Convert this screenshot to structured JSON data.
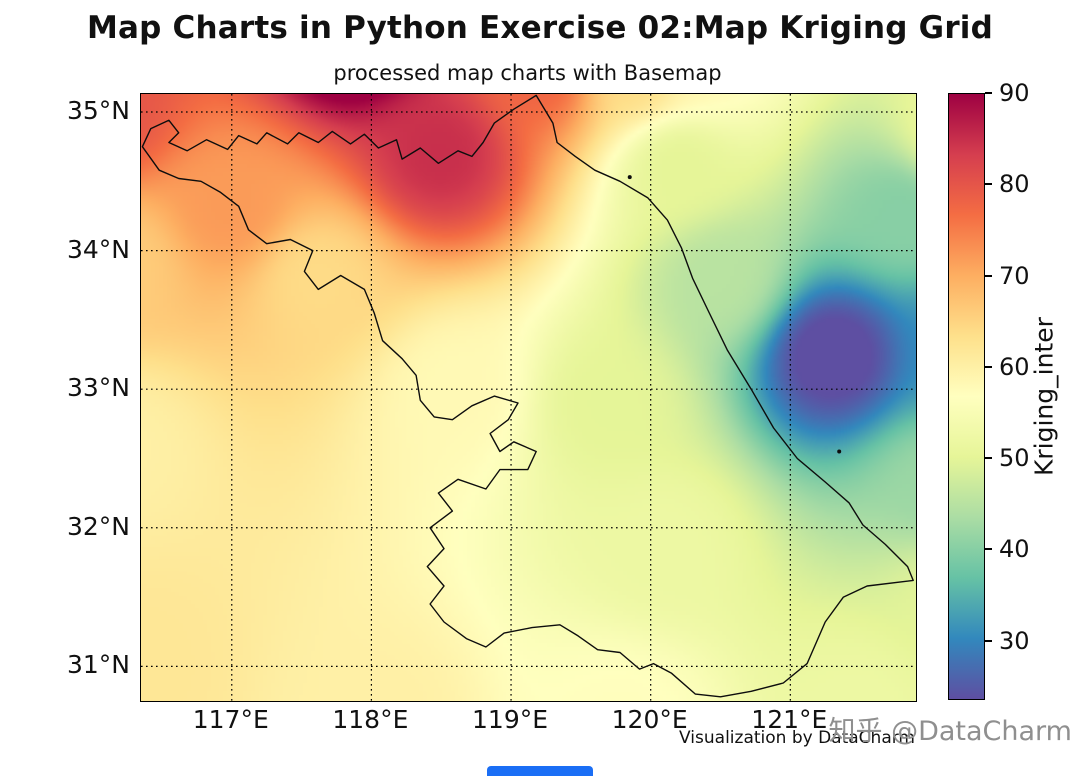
{
  "page": {
    "title": "Map Charts in Python Exercise 02:Map Kriging Grid",
    "subtitle": "processed map charts with Basemap",
    "attribution": "Visualization by DataCharm",
    "watermark": "知乎 @DataCharm"
  },
  "colors": {
    "background": "#ffffff",
    "boundary_line": "#0d0d0d",
    "gridline": "#000000",
    "watermark_gray": "#8f8f8f",
    "bottom_bar_blue": "#1a6ef5"
  },
  "chart_data": {
    "type": "heatmap",
    "suptitle": "Map Charts in Python Exercise 02:Map Kriging Grid",
    "title": "processed map charts with Basemap",
    "grid": "dotted",
    "x_axis": {
      "range": [
        116.35,
        121.9
      ],
      "ticks": [
        {
          "value": 117,
          "label": "117°E"
        },
        {
          "value": 118,
          "label": "118°E"
        },
        {
          "value": 119,
          "label": "119°E"
        },
        {
          "value": 120,
          "label": "120°E"
        },
        {
          "value": 121,
          "label": "121°E"
        }
      ]
    },
    "y_axis": {
      "range": [
        30.75,
        35.13
      ],
      "ticks": [
        {
          "value": 35,
          "label": "35°N"
        },
        {
          "value": 34,
          "label": "34°N"
        },
        {
          "value": 33,
          "label": "33°N"
        },
        {
          "value": 32,
          "label": "32°N"
        },
        {
          "value": 31,
          "label": "31°N"
        }
      ]
    },
    "colorbar": {
      "label": "Kriging_inter",
      "vmin": 23.5,
      "vmax": 90,
      "ticks": [
        90,
        80,
        70,
        60,
        50,
        40,
        30
      ]
    },
    "colormap": {
      "name": "Spectral_r",
      "stops_low_to_high": [
        "#5e4fa2",
        "#3288bd",
        "#66c2a5",
        "#abdda4",
        "#e6f598",
        "#ffffbf",
        "#fee08b",
        "#fdae61",
        "#f46d43",
        "#d53e4f",
        "#9e0142"
      ]
    },
    "kriging_field_control_points_lon_lat_value": [
      [
        117.9,
        35.6,
        97
      ],
      [
        118.5,
        34.7,
        85
      ],
      [
        116.1,
        35.0,
        80
      ],
      [
        119.2,
        35.3,
        78
      ],
      [
        117.0,
        34.3,
        72
      ],
      [
        116.2,
        33.9,
        66
      ],
      [
        117.6,
        33.8,
        64
      ],
      [
        119.9,
        35.3,
        64
      ],
      [
        116.3,
        31.0,
        62
      ],
      [
        116.2,
        32.6,
        60
      ],
      [
        118.0,
        30.6,
        60
      ],
      [
        118.6,
        33.0,
        58
      ],
      [
        120.3,
        35.4,
        58
      ],
      [
        119.8,
        30.6,
        57
      ],
      [
        121.5,
        30.7,
        52
      ],
      [
        122.2,
        34.8,
        52
      ],
      [
        120.1,
        31.9,
        52
      ],
      [
        119.7,
        32.9,
        50
      ],
      [
        122.2,
        31.5,
        50
      ],
      [
        120.2,
        34.6,
        50
      ],
      [
        120.5,
        33.8,
        45
      ],
      [
        122.1,
        32.3,
        42
      ],
      [
        121.8,
        34.3,
        40
      ],
      [
        122.3,
        33.3,
        30
      ],
      [
        121.3,
        33.25,
        22
      ]
    ],
    "region_boundary_lonlat": [
      [
        116.36,
        34.75
      ],
      [
        116.42,
        34.88
      ],
      [
        116.55,
        34.94
      ],
      [
        116.62,
        34.85
      ],
      [
        116.55,
        34.78
      ],
      [
        116.68,
        34.72
      ],
      [
        116.82,
        34.8
      ],
      [
        116.97,
        34.73
      ],
      [
        117.05,
        34.83
      ],
      [
        117.18,
        34.77
      ],
      [
        117.25,
        34.85
      ],
      [
        117.4,
        34.77
      ],
      [
        117.48,
        34.85
      ],
      [
        117.62,
        34.78
      ],
      [
        117.72,
        34.86
      ],
      [
        117.85,
        34.77
      ],
      [
        117.95,
        34.84
      ],
      [
        118.05,
        34.74
      ],
      [
        118.18,
        34.8
      ],
      [
        118.22,
        34.66
      ],
      [
        118.35,
        34.74
      ],
      [
        118.48,
        34.63
      ],
      [
        118.62,
        34.72
      ],
      [
        118.72,
        34.68
      ],
      [
        118.8,
        34.78
      ],
      [
        118.88,
        34.92
      ],
      [
        119.02,
        35.02
      ],
      [
        119.18,
        35.12
      ],
      [
        119.3,
        34.92
      ],
      [
        119.33,
        34.78
      ],
      [
        119.46,
        34.68
      ],
      [
        119.6,
        34.58
      ],
      [
        119.78,
        34.5
      ],
      [
        119.98,
        34.38
      ],
      [
        120.12,
        34.22
      ],
      [
        120.22,
        34.02
      ],
      [
        120.3,
        33.8
      ],
      [
        120.42,
        33.55
      ],
      [
        120.55,
        33.28
      ],
      [
        120.72,
        33.0
      ],
      [
        120.88,
        32.72
      ],
      [
        121.05,
        32.5
      ],
      [
        121.25,
        32.33
      ],
      [
        121.42,
        32.18
      ],
      [
        121.52,
        32.02
      ],
      [
        121.68,
        31.88
      ],
      [
        121.84,
        31.72
      ],
      [
        121.88,
        31.62
      ],
      [
        121.55,
        31.58
      ],
      [
        121.38,
        31.5
      ],
      [
        121.25,
        31.32
      ],
      [
        121.12,
        31.02
      ],
      [
        120.95,
        30.88
      ],
      [
        120.72,
        30.82
      ],
      [
        120.5,
        30.78
      ],
      [
        120.32,
        30.8
      ],
      [
        120.15,
        30.95
      ],
      [
        120.02,
        31.02
      ],
      [
        119.92,
        30.98
      ],
      [
        119.78,
        31.1
      ],
      [
        119.62,
        31.12
      ],
      [
        119.48,
        31.22
      ],
      [
        119.35,
        31.3
      ],
      [
        119.15,
        31.28
      ],
      [
        118.95,
        31.24
      ],
      [
        118.82,
        31.14
      ],
      [
        118.68,
        31.2
      ],
      [
        118.52,
        31.32
      ],
      [
        118.42,
        31.45
      ],
      [
        118.52,
        31.58
      ],
      [
        118.4,
        31.72
      ],
      [
        118.52,
        31.85
      ],
      [
        118.42,
        32.0
      ],
      [
        118.58,
        32.12
      ],
      [
        118.48,
        32.25
      ],
      [
        118.62,
        32.35
      ],
      [
        118.82,
        32.28
      ],
      [
        118.92,
        32.42
      ],
      [
        119.12,
        32.42
      ],
      [
        119.18,
        32.55
      ],
      [
        119.02,
        32.62
      ],
      [
        118.92,
        32.55
      ],
      [
        118.85,
        32.68
      ],
      [
        118.98,
        32.78
      ],
      [
        119.05,
        32.9
      ],
      [
        118.88,
        32.95
      ],
      [
        118.72,
        32.88
      ],
      [
        118.58,
        32.78
      ],
      [
        118.45,
        32.8
      ],
      [
        118.35,
        32.92
      ],
      [
        118.32,
        33.1
      ],
      [
        118.22,
        33.22
      ],
      [
        118.08,
        33.35
      ],
      [
        118.02,
        33.55
      ],
      [
        117.95,
        33.72
      ],
      [
        117.78,
        33.82
      ],
      [
        117.62,
        33.72
      ],
      [
        117.52,
        33.85
      ],
      [
        117.58,
        34.0
      ],
      [
        117.42,
        34.08
      ],
      [
        117.25,
        34.05
      ],
      [
        117.12,
        34.15
      ],
      [
        117.05,
        34.32
      ],
      [
        116.92,
        34.42
      ],
      [
        116.78,
        34.5
      ],
      [
        116.62,
        34.52
      ],
      [
        116.48,
        34.58
      ]
    ],
    "islands_lonlat": [
      [
        119.85,
        34.53
      ],
      [
        121.35,
        32.55
      ]
    ]
  }
}
